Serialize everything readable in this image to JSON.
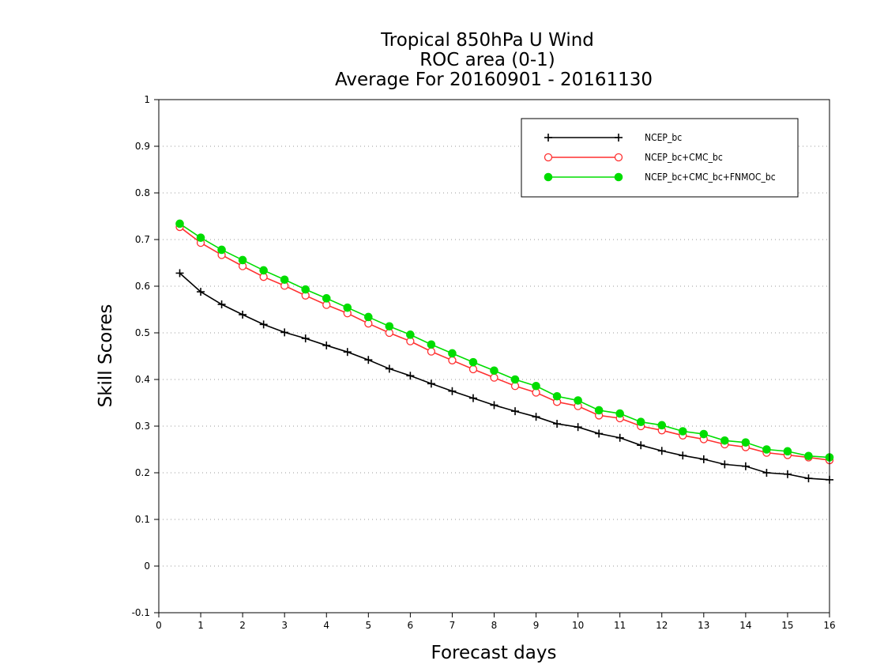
{
  "chart_data": {
    "type": "line",
    "title_lines": [
      "Tropical 850hPa U Wind",
      "ROC area (0-1)",
      "Average For 20160901 - 20161130"
    ],
    "xlabel": "Forecast days",
    "ylabel": "Skill Scores",
    "xlim": [
      0,
      16
    ],
    "ylim": [
      -0.1,
      1
    ],
    "x_ticks": [
      0,
      1,
      2,
      3,
      4,
      5,
      6,
      7,
      8,
      9,
      10,
      11,
      12,
      13,
      14,
      15,
      16
    ],
    "y_ticks": [
      -0.1,
      0,
      0.1,
      0.2,
      0.3,
      0.4,
      0.5,
      0.6,
      0.7,
      0.8,
      0.9,
      1
    ],
    "y_tick_labels": [
      "-0.1",
      "0",
      "0.1",
      "0.2",
      "0.3",
      "0.4",
      "0.5",
      "0.6",
      "0.7",
      "0.8",
      "0.9",
      "1"
    ],
    "grid": "horizontal-dotted",
    "legend_position": "top-right",
    "x": [
      0.5,
      1,
      1.5,
      2,
      2.5,
      3,
      3.5,
      4,
      4.5,
      5,
      5.5,
      6,
      6.5,
      7,
      7.5,
      8,
      8.5,
      9,
      9.5,
      10,
      10.5,
      11,
      11.5,
      12,
      12.5,
      13,
      13.5,
      14,
      14.5,
      15,
      15.5,
      16
    ],
    "series": [
      {
        "name": "NCEP_bc",
        "color": "#000000",
        "marker": "plus",
        "values": [
          0.628,
          0.588,
          0.561,
          0.539,
          0.518,
          0.501,
          0.488,
          0.473,
          0.459,
          0.442,
          0.423,
          0.408,
          0.391,
          0.375,
          0.36,
          0.345,
          0.332,
          0.32,
          0.305,
          0.298,
          0.284,
          0.275,
          0.259,
          0.247,
          0.237,
          0.229,
          0.218,
          0.214,
          0.2,
          0.197,
          0.188,
          0.185
        ]
      },
      {
        "name": "NCEP_bc+CMC_bc",
        "color": "#ff3030",
        "marker": "open-circle",
        "values": [
          0.727,
          0.693,
          0.667,
          0.643,
          0.62,
          0.601,
          0.58,
          0.56,
          0.542,
          0.52,
          0.5,
          0.482,
          0.46,
          0.441,
          0.422,
          0.404,
          0.386,
          0.372,
          0.352,
          0.343,
          0.323,
          0.317,
          0.3,
          0.291,
          0.28,
          0.272,
          0.261,
          0.255,
          0.243,
          0.238,
          0.233,
          0.227
        ]
      },
      {
        "name": "NCEP_bc+CMC_bc+FNMOC_bc",
        "color": "#00dd00",
        "marker": "filled-circle",
        "values": [
          0.734,
          0.704,
          0.678,
          0.656,
          0.634,
          0.614,
          0.593,
          0.574,
          0.554,
          0.534,
          0.514,
          0.496,
          0.475,
          0.456,
          0.437,
          0.419,
          0.4,
          0.386,
          0.364,
          0.355,
          0.334,
          0.327,
          0.309,
          0.302,
          0.289,
          0.283,
          0.269,
          0.265,
          0.25,
          0.246,
          0.236,
          0.233
        ]
      }
    ]
  }
}
